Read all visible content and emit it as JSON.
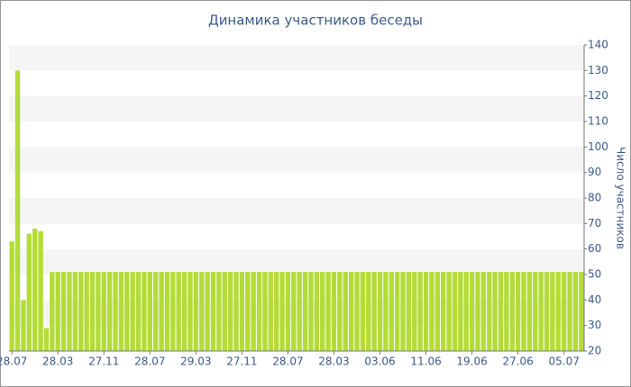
{
  "chart_data": {
    "type": "bar",
    "title": "Динамика участников беседы",
    "y_label": "Число участников",
    "categories": [
      "28.07",
      null,
      null,
      null,
      null,
      null,
      null,
      null,
      "28.03",
      null,
      null,
      null,
      null,
      null,
      null,
      null,
      "27.11",
      null,
      null,
      null,
      null,
      null,
      null,
      null,
      "28.07",
      null,
      null,
      null,
      null,
      null,
      null,
      null,
      "29.03",
      null,
      null,
      null,
      null,
      null,
      null,
      null,
      "27.11",
      null,
      null,
      null,
      null,
      null,
      null,
      null,
      "28.07",
      null,
      null,
      null,
      null,
      null,
      null,
      null,
      "28.03",
      null,
      null,
      null,
      null,
      null,
      null,
      null,
      "03.06",
      null,
      null,
      null,
      null,
      null,
      null,
      null,
      "11.06",
      null,
      null,
      null,
      null,
      null,
      null,
      null,
      "19.06",
      null,
      null,
      null,
      null,
      null,
      null,
      null,
      "27.06",
      null,
      null,
      null,
      null,
      null,
      null,
      null,
      "05.07",
      null,
      null,
      null
    ],
    "values": [
      63,
      130,
      40,
      66,
      68,
      67,
      29,
      51,
      51,
      51,
      51,
      51,
      51,
      51,
      51,
      51,
      51,
      51,
      51,
      51,
      51,
      51,
      51,
      51,
      51,
      51,
      51,
      51,
      51,
      51,
      51,
      51,
      51,
      51,
      51,
      51,
      51,
      51,
      51,
      51,
      51,
      51,
      51,
      51,
      51,
      51,
      51,
      51,
      51,
      51,
      51,
      51,
      51,
      51,
      51,
      51,
      51,
      51,
      51,
      51,
      51,
      51,
      51,
      51,
      51,
      51,
      51,
      51,
      51,
      51,
      51,
      51,
      51,
      51,
      51,
      51,
      51,
      51,
      51,
      51,
      51,
      51,
      51,
      51,
      51,
      51,
      51,
      51,
      51,
      51,
      51,
      51,
      51,
      51,
      51,
      51,
      51,
      51,
      51,
      51
    ],
    "color": "#b4dc38",
    "ylim": [
      20,
      140
    ],
    "yticks": [
      20,
      30,
      40,
      50,
      60,
      70,
      80,
      90,
      100,
      110,
      120,
      130,
      140
    ],
    "bands": true
  }
}
